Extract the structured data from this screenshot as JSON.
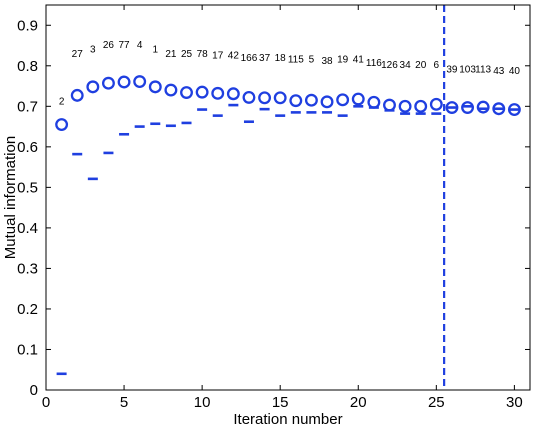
{
  "chart_data": {
    "type": "scatter",
    "xlabel": "Iteration number",
    "ylabel": "Mutual information",
    "xlim": [
      0,
      31
    ],
    "ylim": [
      0,
      0.95
    ],
    "xticks": [
      0,
      5,
      10,
      15,
      20,
      25,
      30
    ],
    "yticks": [
      0,
      0.1,
      0.2,
      0.3,
      0.4,
      0.5,
      0.6,
      0.7,
      0.8,
      0.9
    ],
    "grid": false,
    "marker_color": "#1f3fe0",
    "series": [
      {
        "marker": "circle",
        "x": [
          1,
          2,
          3,
          4,
          5,
          6,
          7,
          8,
          9,
          10,
          11,
          12,
          13,
          14,
          15,
          16,
          17,
          18,
          19,
          20,
          21,
          22,
          23,
          24,
          25,
          26,
          27,
          28,
          29,
          30
        ],
        "values": [
          0.655,
          0.727,
          0.748,
          0.757,
          0.76,
          0.761,
          0.748,
          0.74,
          0.734,
          0.735,
          0.732,
          0.731,
          0.722,
          0.721,
          0.721,
          0.714,
          0.715,
          0.711,
          0.716,
          0.718,
          0.71,
          0.703,
          0.7,
          0.7,
          0.705,
          0.697,
          0.697,
          0.698,
          0.694,
          0.692
        ]
      },
      {
        "marker": "dash",
        "x": [
          1,
          2,
          3,
          4,
          5,
          6,
          7,
          8,
          9,
          10,
          11,
          12,
          13,
          14,
          15,
          16,
          17,
          18,
          19,
          20,
          21,
          22,
          23,
          24,
          25,
          26,
          27,
          28,
          29,
          30
        ],
        "values": [
          0.04,
          0.582,
          0.521,
          0.585,
          0.631,
          0.65,
          0.657,
          0.652,
          0.659,
          0.692,
          0.677,
          0.703,
          0.662,
          0.693,
          0.677,
          0.685,
          0.685,
          0.685,
          0.677,
          0.7,
          0.697,
          0.69,
          0.682,
          0.682,
          0.682,
          0.697,
          0.7,
          0.694,
          0.694,
          0.692
        ]
      }
    ],
    "point_labels": [
      "2",
      "27",
      "3",
      "26",
      "77",
      "4",
      "1",
      "21",
      "25",
      "78",
      "17",
      "42",
      "166",
      "37",
      "18",
      "115",
      "5",
      "38",
      "19",
      "41",
      "116",
      "126",
      "34",
      "20",
      "6",
      "39",
      "103",
      "113",
      "43",
      "40"
    ],
    "point_label_y": [
      0.705,
      0.822,
      0.833,
      0.844,
      0.844,
      0.844,
      0.833,
      0.822,
      0.822,
      0.822,
      0.818,
      0.818,
      0.812,
      0.812,
      0.812,
      0.808,
      0.808,
      0.805,
      0.808,
      0.808,
      0.799,
      0.795,
      0.795,
      0.795,
      0.795,
      0.784,
      0.784,
      0.784,
      0.78,
      0.78
    ],
    "vline": {
      "x": 25.5,
      "style": "dashed"
    }
  }
}
